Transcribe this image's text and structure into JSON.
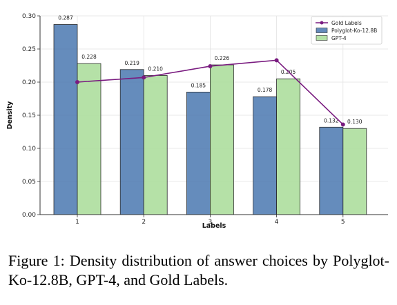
{
  "caption": "Figure 1: Density distribution of answer choices by Polyglot-Ko-12.8B, GPT-4, and Gold Labels.",
  "chart_data": {
    "type": "bar",
    "title": "",
    "xlabel": "Labels",
    "ylabel": "Density",
    "categories": [
      "1",
      "2",
      "3",
      "4",
      "5"
    ],
    "ylim": [
      0,
      0.3
    ],
    "yticks": [
      "0.00",
      "0.05",
      "0.10",
      "0.15",
      "0.20",
      "0.25",
      "0.30"
    ],
    "series": [
      {
        "name": "Polyglot-Ko-12.8B",
        "kind": "bar",
        "color": "#4a78b0",
        "values": [
          0.287,
          0.219,
          0.185,
          0.178,
          0.132
        ],
        "labels": [
          "0.287",
          "0.219",
          "0.185",
          "0.178",
          "0.132"
        ]
      },
      {
        "name": "GPT-4",
        "kind": "bar",
        "color": "#a8dc98",
        "values": [
          0.228,
          0.21,
          0.226,
          0.205,
          0.13
        ],
        "labels": [
          "0.228",
          "0.210",
          "0.226",
          "0.205",
          "0.130"
        ]
      },
      {
        "name": "Gold Labels",
        "kind": "line",
        "color": "#7a1c80",
        "values": [
          0.2,
          0.207,
          0.224,
          0.233,
          0.136
        ]
      }
    ],
    "legend_position": "top-right",
    "grid": true
  }
}
